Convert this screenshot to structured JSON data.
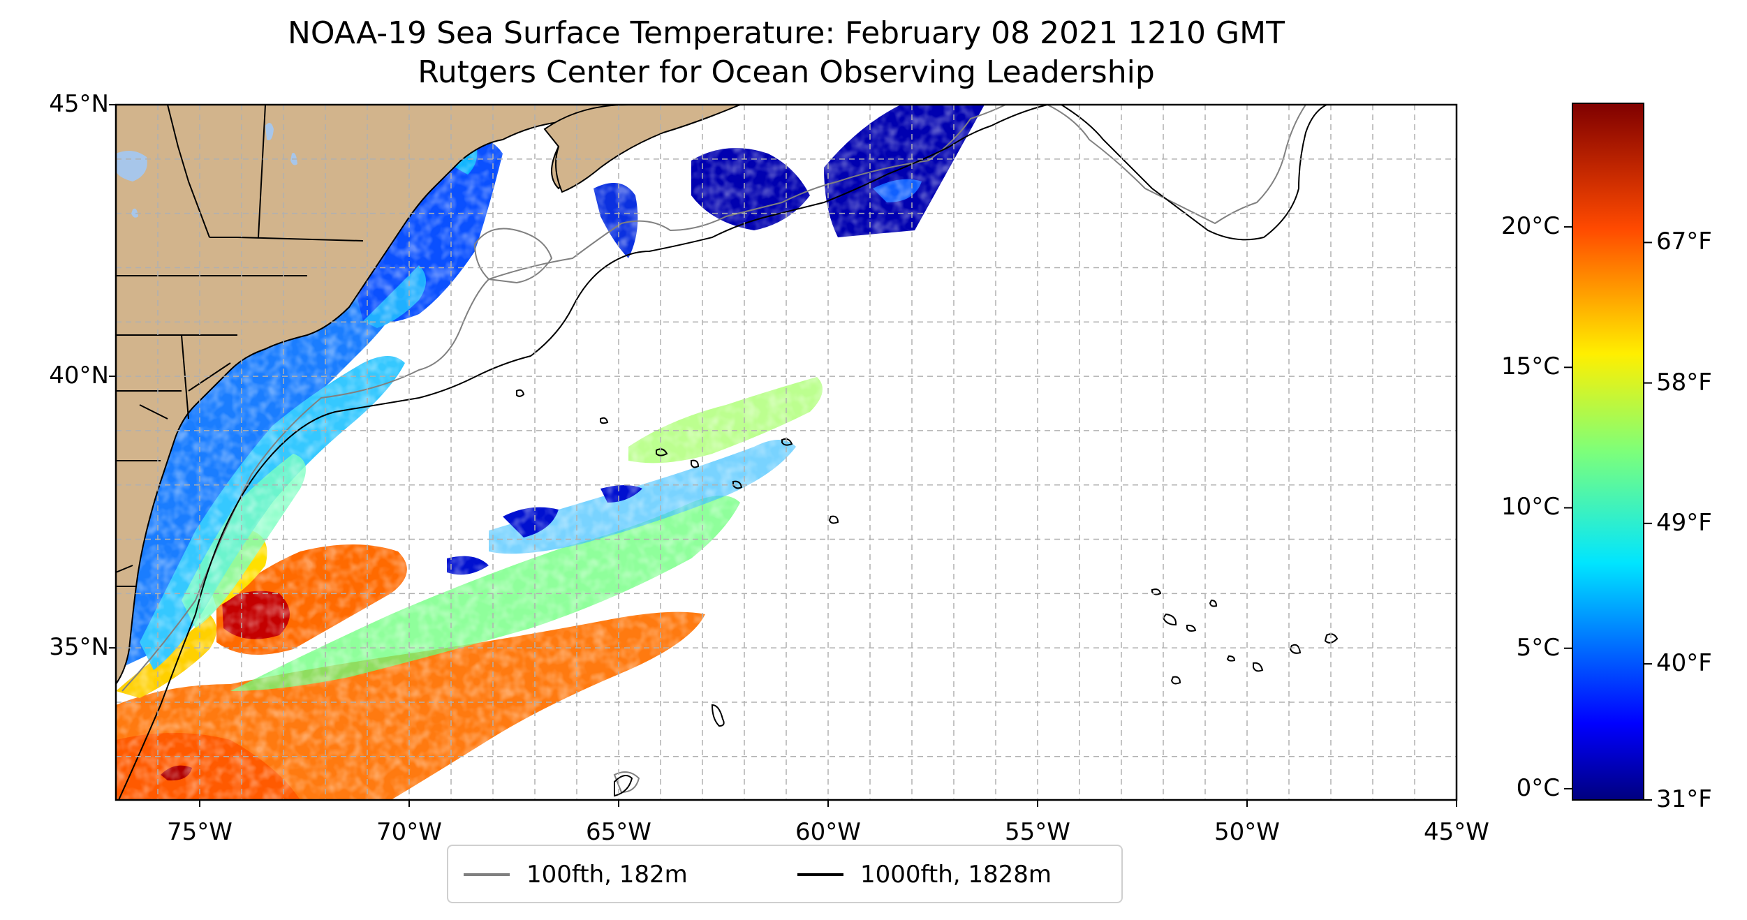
{
  "title": {
    "line1": "NOAA-19 Sea Surface Temperature: February 08 2021 1210 GMT",
    "line2": "Rutgers Center for Ocean Observing Leadership"
  },
  "map": {
    "lon_range": [
      -77,
      -45
    ],
    "lat_range": [
      32.2,
      45
    ],
    "lat_ticks": [
      {
        "value": 45,
        "label": "45°N"
      },
      {
        "value": 40,
        "label": "40°N"
      },
      {
        "value": 35,
        "label": "35°N"
      }
    ],
    "lon_ticks": [
      {
        "value": -75,
        "label": "75°W"
      },
      {
        "value": -70,
        "label": "70°W"
      },
      {
        "value": -65,
        "label": "65°W"
      },
      {
        "value": -60,
        "label": "60°W"
      },
      {
        "value": -55,
        "label": "55°W"
      },
      {
        "value": -50,
        "label": "50°W"
      },
      {
        "value": -45,
        "label": "45°W"
      }
    ],
    "grid": "dashed every 1 degree",
    "land_color": "#d2b48c",
    "lake_color": "#a7c6ea"
  },
  "colorbar": {
    "colormap": "jet",
    "range_c": [
      -0.4,
      24.4
    ],
    "celsius_ticks": [
      {
        "value": 0,
        "label": "0°C"
      },
      {
        "value": 5,
        "label": "5°C"
      },
      {
        "value": 10,
        "label": "10°C"
      },
      {
        "value": 15,
        "label": "15°C"
      },
      {
        "value": 20,
        "label": "20°C"
      }
    ],
    "fahrenheit_ticks": [
      {
        "value": 31,
        "label": "31°F"
      },
      {
        "value": 40,
        "label": "40°F"
      },
      {
        "value": 49,
        "label": "49°F"
      },
      {
        "value": 58,
        "label": "58°F"
      },
      {
        "value": 67,
        "label": "67°F"
      }
    ]
  },
  "legend": {
    "items": [
      {
        "label": "100fth, 182m",
        "color": "#808080"
      },
      {
        "label": "1000fth, 1828m",
        "color": "#000000"
      }
    ]
  }
}
